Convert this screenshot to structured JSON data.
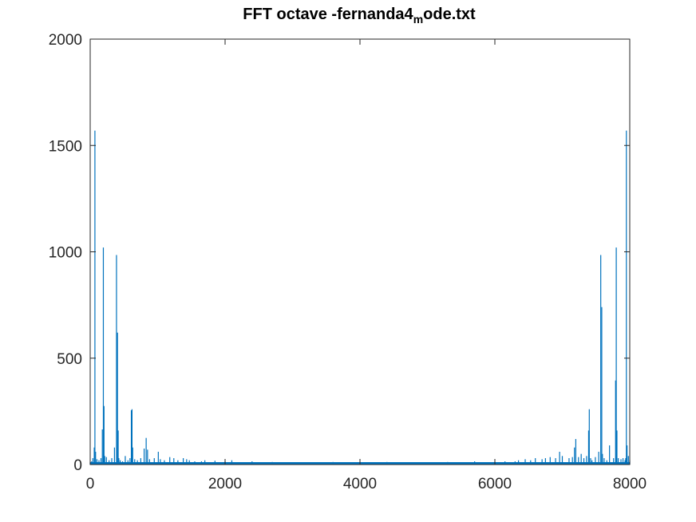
{
  "chart_data": {
    "type": "line",
    "title": {
      "prefix": "FFT octave -fernanda4",
      "subscript": "m",
      "suffix": "ode.txt"
    },
    "xlabel": "",
    "ylabel": "",
    "xlim": [
      0,
      8000
    ],
    "ylim": [
      0,
      2000
    ],
    "xticks": [
      0,
      2000,
      4000,
      6000,
      8000
    ],
    "yticks": [
      0,
      500,
      1000,
      1500,
      2000
    ],
    "grid": false,
    "legend": "none",
    "color": "#0072bd",
    "series": [
      {
        "x": [
          0,
          20,
          40,
          60,
          70,
          80,
          100,
          130,
          160,
          180,
          195,
          205,
          215,
          240,
          280,
          320,
          360,
          390,
          405,
          415,
          425,
          445,
          480,
          520,
          560,
          590,
          610,
          620,
          630,
          660,
          700,
          750,
          800,
          830,
          850,
          880,
          950,
          1010,
          1040,
          1100,
          1180,
          1240,
          1300,
          1380,
          1430,
          1470,
          1550,
          1650,
          1700,
          1850,
          2000,
          2100,
          2250,
          2400,
          2500,
          2700,
          3000,
          3300,
          3600,
          4000,
          4400,
          4700,
          5000,
          5300,
          5500,
          5700,
          5900,
          6000,
          6150,
          6300,
          6350,
          6450,
          6530,
          6600,
          6700,
          6750,
          6820,
          6900,
          6960,
          7000,
          7100,
          7150,
          7180,
          7200,
          7240,
          7280,
          7320,
          7360,
          7390,
          7400,
          7420,
          7440,
          7490,
          7540,
          7570,
          7585,
          7595,
          7620,
          7660,
          7700,
          7760,
          7790,
          7800,
          7810,
          7830,
          7870,
          7900,
          7930,
          7940,
          7950,
          7960,
          7980,
          8000
        ],
        "y": [
          10,
          15,
          30,
          80,
          1570,
          60,
          25,
          20,
          30,
          165,
          1020,
          275,
          40,
          35,
          20,
          30,
          80,
          985,
          620,
          160,
          30,
          20,
          15,
          40,
          20,
          30,
          255,
          260,
          80,
          25,
          20,
          30,
          75,
          125,
          70,
          25,
          30,
          60,
          25,
          20,
          35,
          30,
          20,
          30,
          25,
          20,
          15,
          15,
          20,
          18,
          15,
          20,
          10,
          15,
          10,
          12,
          10,
          10,
          12,
          10,
          12,
          10,
          10,
          12,
          10,
          15,
          10,
          12,
          15,
          15,
          20,
          25,
          20,
          30,
          25,
          30,
          35,
          30,
          60,
          40,
          30,
          35,
          80,
          120,
          35,
          50,
          30,
          40,
          160,
          260,
          30,
          20,
          35,
          60,
          985,
          740,
          50,
          30,
          20,
          90,
          30,
          395,
          1020,
          160,
          30,
          25,
          30,
          20,
          30,
          1570,
          90,
          40,
          20
        ]
      }
    ]
  }
}
